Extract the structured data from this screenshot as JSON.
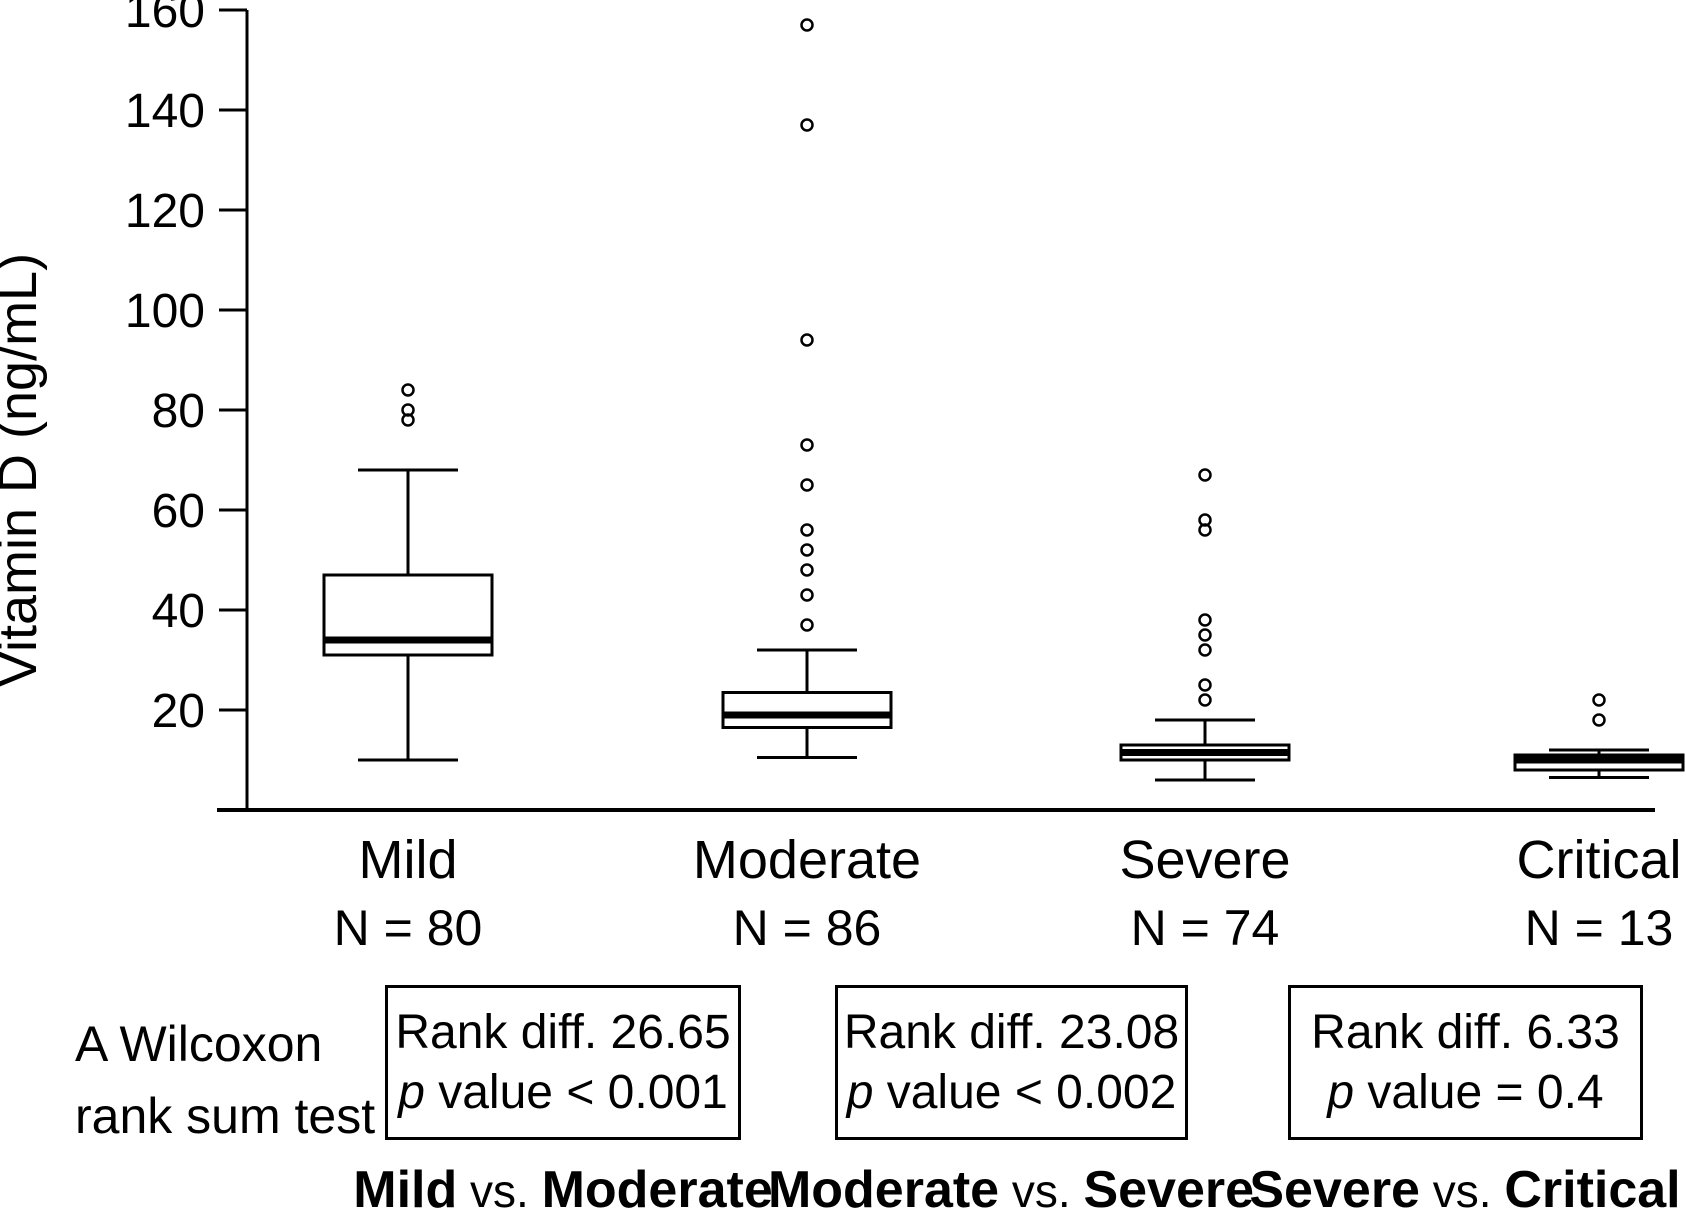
{
  "figure": {
    "background": "#ffffff",
    "ink": "#000000"
  },
  "chart_data": {
    "type": "boxplot",
    "title": "",
    "xlabel": "",
    "ylabel": "Vitamin D (ng/mL)",
    "ylim": [
      0,
      162
    ],
    "yticks": [
      20,
      40,
      60,
      80,
      100,
      120,
      140,
      160
    ],
    "grid": false,
    "legend": "none",
    "categories": [
      "Mild",
      "Moderate",
      "Severe",
      "Critical"
    ],
    "groups": [
      {
        "label": "Mild",
        "n_label": "N = 80",
        "n": 80,
        "whisker_low": 10,
        "q1": 31,
        "median": 34,
        "q3": 47,
        "whisker_high": 68,
        "outliers": [
          78,
          80,
          84
        ]
      },
      {
        "label": "Moderate",
        "n_label": "N = 86",
        "n": 86,
        "whisker_low": 10.5,
        "q1": 16.5,
        "median": 19,
        "q3": 23.5,
        "whisker_high": 32,
        "outliers": [
          37,
          43,
          48,
          52,
          56,
          65,
          73,
          94,
          137,
          157
        ]
      },
      {
        "label": "Severe",
        "n_label": "N = 74",
        "n": 74,
        "whisker_low": 6,
        "q1": 10,
        "median": 11.5,
        "q3": 13,
        "whisker_high": 18,
        "outliers": [
          22,
          25,
          32,
          35,
          38,
          56,
          58,
          67
        ]
      },
      {
        "label": "Critical",
        "n_label": "N = 13",
        "n": 13,
        "whisker_low": 6.5,
        "q1": 8,
        "median": 10,
        "q3": 11,
        "whisker_high": 12,
        "outliers": [
          18,
          22
        ]
      }
    ]
  },
  "stats": {
    "method_line1": "A Wilcoxon",
    "method_line2": "rank sum test",
    "comparisons": [
      {
        "rank_diff_text": "Rank diff. 26.65",
        "p_symbol": "p",
        "p_rest": " value < 0.001",
        "group_a": "Mild",
        "vs": " vs. ",
        "group_b": "Moderate"
      },
      {
        "rank_diff_text": "Rank diff. 23.08",
        "p_symbol": "p",
        "p_rest": " value < 0.002",
        "group_a": "Moderate",
        "vs": " vs. ",
        "group_b": "Severe"
      },
      {
        "rank_diff_text": "Rank diff. 6.33",
        "p_symbol": "p",
        "p_rest": " value = 0.4",
        "group_a": "Severe",
        "vs": " vs. ",
        "group_b": "Critical"
      }
    ]
  }
}
